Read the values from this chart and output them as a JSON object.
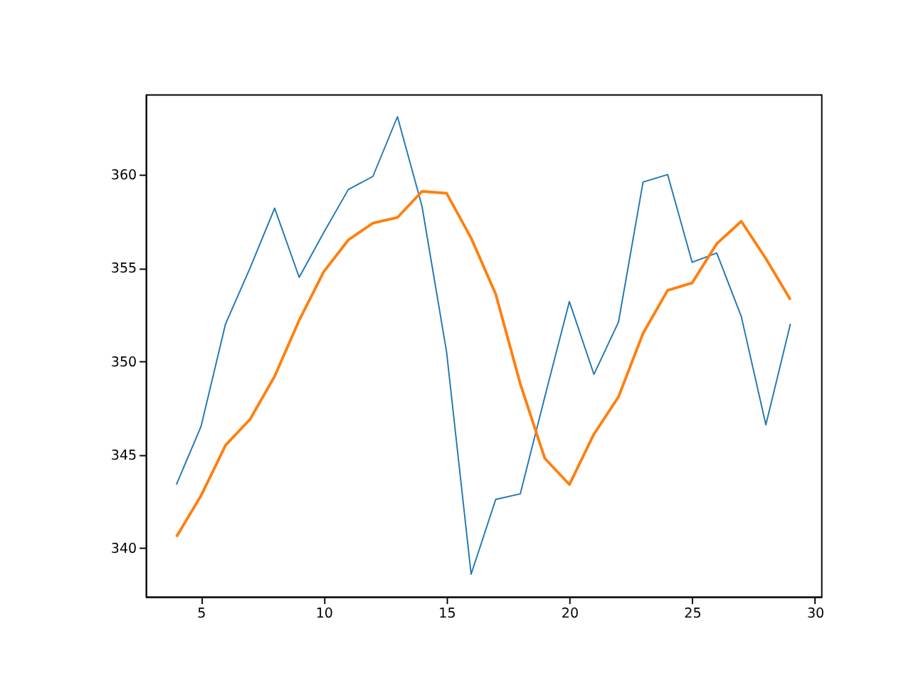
{
  "chart_data": {
    "type": "line",
    "x": [
      4,
      5,
      6,
      7,
      8,
      9,
      10,
      11,
      12,
      13,
      14,
      15,
      16,
      17,
      18,
      19,
      20,
      21,
      22,
      23,
      24,
      25,
      26,
      27,
      28,
      29
    ],
    "series": [
      {
        "color": "#1f77b4",
        "values": [
          343.4,
          346.5,
          352.0,
          355.0,
          358.2,
          354.5,
          356.9,
          359.2,
          359.9,
          363.1,
          358.3,
          350.5,
          338.6,
          342.6,
          342.9,
          348.1,
          353.2,
          349.3,
          352.1,
          359.6,
          360.0,
          355.3,
          355.8,
          352.4,
          346.6,
          352.0
        ]
      },
      {
        "color": "#ff7f0e",
        "values": [
          340.6,
          342.8,
          345.5,
          346.9,
          349.2,
          352.2,
          354.8,
          356.5,
          357.4,
          357.7,
          359.1,
          359.0,
          356.6,
          353.6,
          348.8,
          344.8,
          343.4,
          346.1,
          348.1,
          351.5,
          353.8,
          354.2,
          356.3,
          357.5,
          355.5,
          353.3
        ]
      }
    ],
    "xlim": [
      2.75,
      30.25
    ],
    "xticks": [
      5,
      10,
      15,
      20,
      25,
      30
    ],
    "ylim": [
      337.4,
      364.3
    ],
    "yticks": [
      340,
      345,
      350,
      355,
      360
    ]
  }
}
